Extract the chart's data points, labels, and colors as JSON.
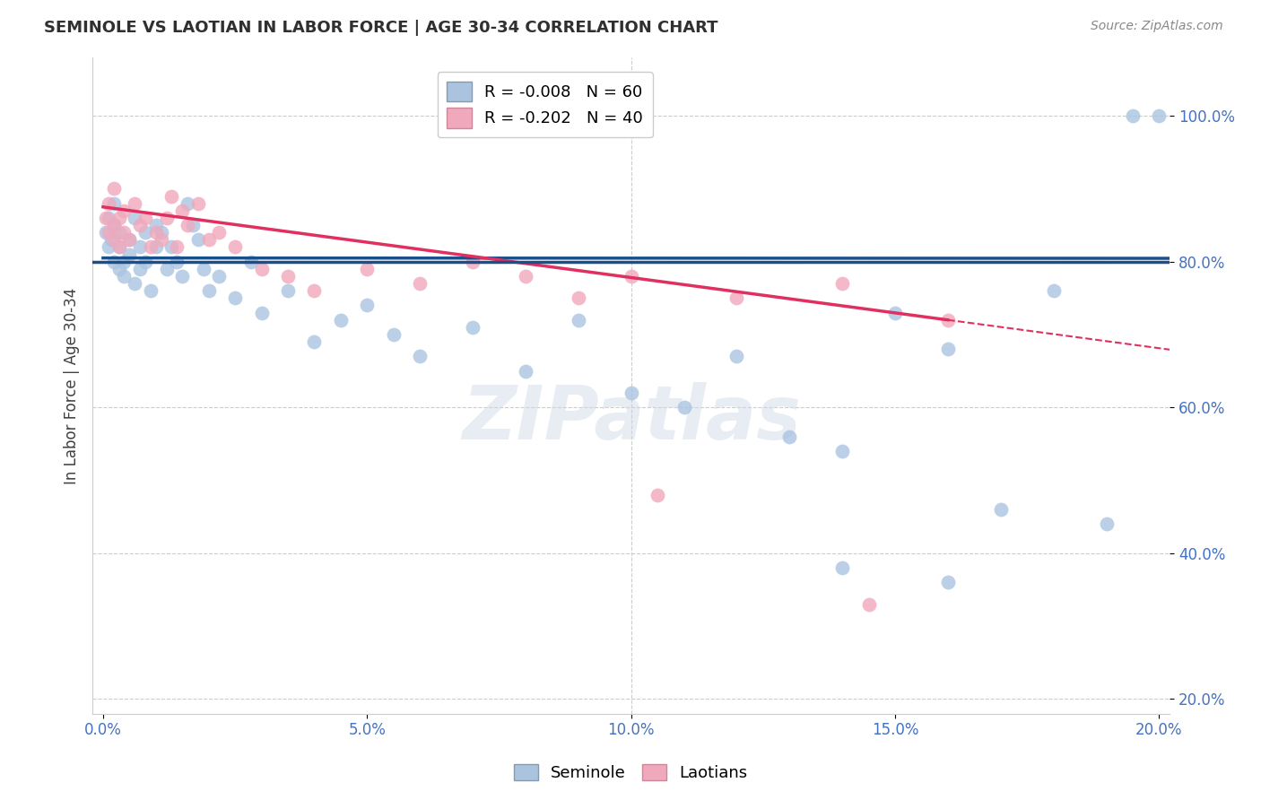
{
  "title": "SEMINOLE VS LAOTIAN IN LABOR FORCE | AGE 30-34 CORRELATION CHART",
  "source": "Source: ZipAtlas.com",
  "ylabel": "In Labor Force | Age 30-34",
  "xlabel_ticks": [
    "0.0%",
    "5.0%",
    "10.0%",
    "15.0%",
    "20.0%"
  ],
  "xlabel_vals": [
    0.0,
    0.05,
    0.1,
    0.15,
    0.2
  ],
  "ylabel_ticks": [
    "20.0%",
    "40.0%",
    "60.0%",
    "80.0%",
    "100.0%"
  ],
  "ylabel_vals": [
    0.2,
    0.4,
    0.6,
    0.8,
    1.0
  ],
  "xlim": [
    -0.002,
    0.202
  ],
  "ylim": [
    0.18,
    1.08
  ],
  "blue_R": -0.008,
  "blue_N": 60,
  "pink_R": -0.202,
  "pink_N": 40,
  "blue_color": "#aac4e0",
  "pink_color": "#f0a8bc",
  "blue_line_color": "#1a4f8a",
  "pink_line_color": "#e03060",
  "blue_label": "Seminole",
  "pink_label": "Laotians",
  "watermark": "ZIPatlas",
  "hline_y": 0.8,
  "hline_color": "#1a4f8a",
  "seminole_x": [
    0.0005,
    0.001,
    0.001,
    0.0015,
    0.002,
    0.002,
    0.002,
    0.003,
    0.003,
    0.003,
    0.004,
    0.004,
    0.005,
    0.005,
    0.006,
    0.006,
    0.007,
    0.007,
    0.008,
    0.008,
    0.009,
    0.01,
    0.01,
    0.011,
    0.012,
    0.013,
    0.014,
    0.015,
    0.016,
    0.017,
    0.018,
    0.019,
    0.02,
    0.022,
    0.025,
    0.028,
    0.03,
    0.035,
    0.04,
    0.045,
    0.05,
    0.055,
    0.06,
    0.07,
    0.08,
    0.09,
    0.1,
    0.11,
    0.12,
    0.13,
    0.14,
    0.15,
    0.16,
    0.17,
    0.18,
    0.19,
    0.2,
    0.14,
    0.16,
    0.195
  ],
  "seminole_y": [
    0.84,
    0.82,
    0.86,
    0.83,
    0.8,
    0.85,
    0.88,
    0.79,
    0.82,
    0.84,
    0.78,
    0.8,
    0.81,
    0.83,
    0.77,
    0.86,
    0.79,
    0.82,
    0.8,
    0.84,
    0.76,
    0.85,
    0.82,
    0.84,
    0.79,
    0.82,
    0.8,
    0.78,
    0.88,
    0.85,
    0.83,
    0.79,
    0.76,
    0.78,
    0.75,
    0.8,
    0.73,
    0.76,
    0.69,
    0.72,
    0.74,
    0.7,
    0.67,
    0.71,
    0.65,
    0.72,
    0.62,
    0.6,
    0.67,
    0.56,
    0.54,
    0.73,
    0.68,
    0.46,
    0.76,
    0.44,
    1.0,
    0.38,
    0.36,
    1.0
  ],
  "laotian_x": [
    0.0005,
    0.001,
    0.001,
    0.002,
    0.002,
    0.002,
    0.003,
    0.003,
    0.004,
    0.004,
    0.005,
    0.006,
    0.007,
    0.008,
    0.009,
    0.01,
    0.011,
    0.012,
    0.013,
    0.014,
    0.015,
    0.016,
    0.018,
    0.02,
    0.022,
    0.025,
    0.03,
    0.035,
    0.04,
    0.05,
    0.06,
    0.07,
    0.08,
    0.09,
    0.1,
    0.12,
    0.14,
    0.16,
    0.105,
    0.145
  ],
  "laotian_y": [
    0.86,
    0.88,
    0.84,
    0.85,
    0.9,
    0.83,
    0.86,
    0.82,
    0.87,
    0.84,
    0.83,
    0.88,
    0.85,
    0.86,
    0.82,
    0.84,
    0.83,
    0.86,
    0.89,
    0.82,
    0.87,
    0.85,
    0.88,
    0.83,
    0.84,
    0.82,
    0.79,
    0.78,
    0.76,
    0.79,
    0.77,
    0.8,
    0.78,
    0.75,
    0.78,
    0.75,
    0.77,
    0.72,
    0.48,
    0.33
  ],
  "pink_line_x_solid_end": 0.16,
  "pink_line_x_dash_end": 0.2
}
